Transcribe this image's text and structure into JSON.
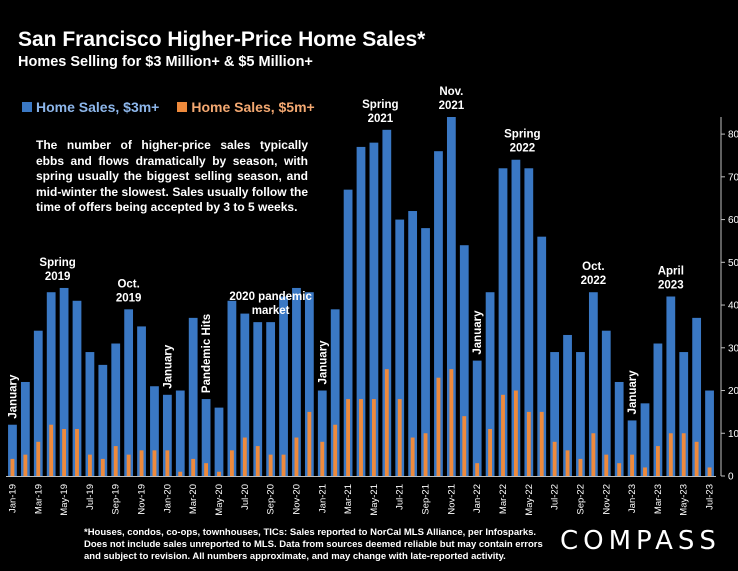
{
  "header": {
    "title": "San Francisco Higher-Price Home Sales*",
    "subtitle": "Homes Selling for $3 Million+ & $5 Million+"
  },
  "note": "The number of higher-price sales typically ebbs and flows dramatically by season, with spring usually the biggest selling season, and mid-winter the slowest. Sales usually follow the time of offers being accepted by 3 to 5 weeks.",
  "footnote": "*Houses, condos, co-ops, townhouses, TICs:  Sales reported to NorCal MLS Alliance, per Infosparks.  Does not include sales unreported to MLS. Data from sources deemed reliable but may contain errors and subject to revision.  All numbers approximate, and may change with late-reported activity.",
  "brand": {
    "logo_text": "COMPASS"
  },
  "colors": {
    "series3m": "#3a78c4",
    "series5m": "#ee8a3c",
    "tick": "#ffffff"
  },
  "chart_data": {
    "type": "bar",
    "categories": [
      "Jan-19",
      "Feb-19",
      "Mar-19",
      "Apr-19",
      "May-19",
      "Jun-19",
      "Jul-19",
      "Aug-19",
      "Sep-19",
      "Oct-19",
      "Nov-19",
      "Dec-19",
      "Jan-20",
      "Feb-20",
      "Mar-20",
      "Apr-20",
      "May-20",
      "Jun-20",
      "Jul-20",
      "Aug-20",
      "Sep-20",
      "Oct-20",
      "Nov-20",
      "Dec-20",
      "Jan-21",
      "Feb-21",
      "Mar-21",
      "Apr-21",
      "May-21",
      "Jun-21",
      "Jul-21",
      "Aug-21",
      "Sep-21",
      "Oct-21",
      "Nov-21",
      "Dec-21",
      "Jan-22",
      "Feb-22",
      "Mar-22",
      "Apr-22",
      "May-22",
      "Jun-22",
      "Jul-22",
      "Aug-22",
      "Sep-22",
      "Oct-22",
      "Nov-22",
      "Dec-22",
      "Jan-23",
      "Feb-23",
      "Mar-23",
      "Apr-23",
      "May-23",
      "Jun-23",
      "Jul-23"
    ],
    "tick_labels": [
      "Jan-19",
      "Mar-19",
      "May-19",
      "Jul-19",
      "Sep-19",
      "Nov-19",
      "Jan-20",
      "Mar-20",
      "May-20",
      "Jul-20",
      "Sep-20",
      "Nov-20",
      "Jan-21",
      "Mar-21",
      "May-21",
      "Jul-21",
      "Sep-21",
      "Nov-21",
      "Jan-22",
      "Mar-22",
      "May-22",
      "Jul-22",
      "Sep-22",
      "Nov-22",
      "Jan-23",
      "Mar-23",
      "May-23",
      "Jul-23"
    ],
    "series": [
      {
        "name": "Home Sales, $3m+",
        "values": [
          12,
          22,
          34,
          43,
          44,
          41,
          29,
          26,
          31,
          39,
          35,
          21,
          19,
          20,
          37,
          18,
          16,
          41,
          38,
          36,
          36,
          42,
          44,
          43,
          20,
          39,
          67,
          77,
          78,
          81,
          60,
          62,
          58,
          76,
          84,
          54,
          27,
          43,
          72,
          74,
          72,
          56,
          29,
          33,
          29,
          43,
          34,
          22,
          13,
          17,
          31,
          42,
          29,
          37,
          20
        ]
      },
      {
        "name": "Home Sales, $5m+",
        "values": [
          4,
          5,
          8,
          12,
          11,
          11,
          5,
          4,
          7,
          5,
          6,
          6,
          6,
          1,
          4,
          3,
          1,
          6,
          9,
          7,
          5,
          5,
          9,
          15,
          8,
          12,
          18,
          18,
          18,
          25,
          18,
          9,
          10,
          23,
          25,
          14,
          3,
          11,
          19,
          20,
          15,
          15,
          8,
          6,
          4,
          10,
          5,
          3,
          5,
          2,
          7,
          10,
          10,
          8,
          2
        ]
      }
    ],
    "ylim": [
      0,
      84
    ],
    "yticks": [
      0,
      10,
      20,
      30,
      40,
      50,
      60,
      70,
      80
    ],
    "y_axis_position": "right",
    "grid": false,
    "legend_position": "top-left",
    "annotations": [
      {
        "lines": [
          "January"
        ],
        "index": 0,
        "rotate": true
      },
      {
        "lines": [
          "Spring",
          "2019"
        ],
        "index": 3.5
      },
      {
        "lines": [
          "Oct.",
          "2019"
        ],
        "index": 9
      },
      {
        "lines": [
          "January"
        ],
        "index": 12,
        "rotate": true
      },
      {
        "lines": [
          "Pandemic Hits"
        ],
        "index": 15,
        "rotate": true
      },
      {
        "lines": [
          "2020 pandemic",
          "market"
        ],
        "index": 20
      },
      {
        "lines": [
          "January"
        ],
        "index": 24,
        "rotate": true
      },
      {
        "lines": [
          "Spring",
          "2021"
        ],
        "index": 28.5
      },
      {
        "lines": [
          "Nov.",
          "2021"
        ],
        "index": 34
      },
      {
        "lines": [
          "January"
        ],
        "index": 36,
        "rotate": true
      },
      {
        "lines": [
          "Spring",
          "2022"
        ],
        "index": 39.5
      },
      {
        "lines": [
          "Oct.",
          "2022"
        ],
        "index": 45
      },
      {
        "lines": [
          "January"
        ],
        "index": 48,
        "rotate": true
      },
      {
        "lines": [
          "April",
          "2023"
        ],
        "index": 51
      }
    ]
  }
}
